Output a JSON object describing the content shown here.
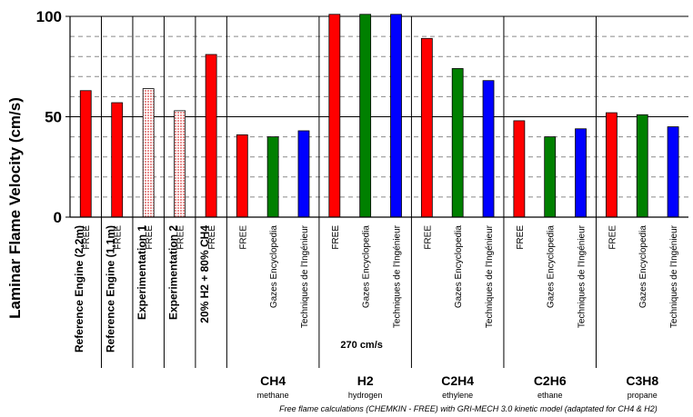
{
  "chart_data": {
    "type": "bar",
    "ylabel": "Laminar Flame Velocity (cm/s)",
    "ylim": [
      0,
      100
    ],
    "yticks": [
      "0",
      "50",
      "100"
    ],
    "grid": true,
    "note": "Free flame calculations (CHEMKIN - FREE) with GRI-MECH 3.0 kinetic model (adaptated for CH4 & H2)",
    "overflow_annotation": "270 cm/s",
    "colors": {
      "FREE": "#ff0000",
      "Gazes Encyclopedia": "#008000",
      "Techniques de l'Ingénieur": "#0000ff",
      "Experimentation": "#f6a0a0"
    },
    "groups": [
      {
        "label": "Reference Engine (2,2m)",
        "sub": "",
        "bars": [
          {
            "source": "FREE",
            "value": 63
          }
        ]
      },
      {
        "label": "Reference Engine (1,1m)",
        "sub": "",
        "bars": [
          {
            "source": "FREE",
            "value": 57
          }
        ]
      },
      {
        "label": "Experimentation 1",
        "sub": "",
        "bars": [
          {
            "source": "FREE",
            "value": 64,
            "style": "hatched"
          }
        ]
      },
      {
        "label": "Experimentation 2",
        "sub": "",
        "bars": [
          {
            "source": "FREE",
            "value": 53,
            "style": "hatched"
          }
        ]
      },
      {
        "label": "20% H2 + 80% CH4",
        "sub": "",
        "bars": [
          {
            "source": "FREE",
            "value": 81
          }
        ]
      },
      {
        "label": "CH4",
        "sub": "methane",
        "bars": [
          {
            "source": "FREE",
            "value": 41
          },
          {
            "source": "Gazes Encyclopedia",
            "value": 40
          },
          {
            "source": "Techniques de l'Ingénieur",
            "value": 43
          }
        ]
      },
      {
        "label": "H2",
        "sub": "hydrogen",
        "bars": [
          {
            "source": "FREE",
            "value": 270
          },
          {
            "source": "Gazes Encyclopedia",
            "value": 270
          },
          {
            "source": "Techniques de l'Ingénieur",
            "value": 270
          }
        ]
      },
      {
        "label": "C2H4",
        "sub": "ethylene",
        "bars": [
          {
            "source": "FREE",
            "value": 89
          },
          {
            "source": "Gazes Encyclopedia",
            "value": 74
          },
          {
            "source": "Techniques de l'Ingénieur",
            "value": 68
          }
        ]
      },
      {
        "label": "C2H6",
        "sub": "ethane",
        "bars": [
          {
            "source": "FREE",
            "value": 48
          },
          {
            "source": "Gazes Encyclopedia",
            "value": 40
          },
          {
            "source": "Techniques de l'Ingénieur",
            "value": 44
          }
        ]
      },
      {
        "label": "C3H8",
        "sub": "propane",
        "bars": [
          {
            "source": "FREE",
            "value": 52
          },
          {
            "source": "Gazes Encyclopedia",
            "value": 51
          },
          {
            "source": "Techniques de l'Ingénieur",
            "value": 45
          }
        ]
      }
    ]
  }
}
